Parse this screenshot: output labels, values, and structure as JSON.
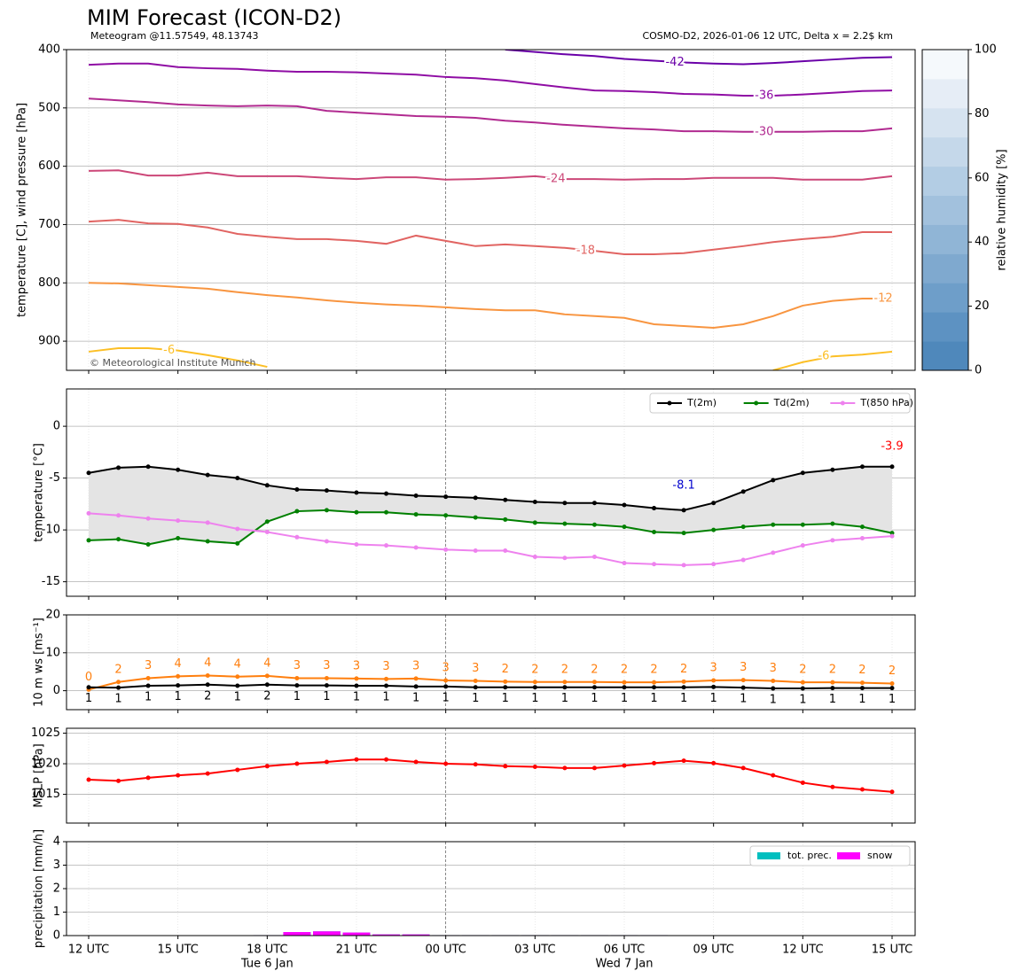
{
  "chart_data": [
    {
      "type": "contour",
      "title": "MIM Forecast (ICON-D2)",
      "subtitle": "Meteogram @11.57549, 48.13743",
      "source_note": "COSMO-D2, 2026-01-06 12 UTC, Delta x = 2.2$ km",
      "credit": "© Meteorological Institute Munich",
      "y_label": "temperature [C], wind pressure [hPa]",
      "ylim": [
        950,
        400
      ],
      "yticks": [
        400,
        500,
        600,
        700,
        800,
        900
      ],
      "grid": true,
      "series": [
        {
          "name": "-42",
          "color": "#6a00a8",
          "values": [
            null,
            null,
            null,
            null,
            null,
            null,
            null,
            null,
            null,
            null,
            null,
            null,
            null,
            null,
            400,
            404,
            408,
            411,
            416,
            419,
            422,
            424,
            425,
            423,
            420,
            417,
            414,
            413
          ]
        },
        {
          "name": "-36",
          "color": "#8f0da4",
          "values": [
            426,
            424,
            424,
            430,
            432,
            433,
            436,
            438,
            438,
            439,
            441,
            443,
            447,
            449,
            453,
            459,
            465,
            470,
            471,
            473,
            476,
            477,
            479,
            479,
            477,
            474,
            471,
            470
          ]
        },
        {
          "name": "-30",
          "color": "#b12a90",
          "values": [
            484,
            487,
            490,
            494,
            496,
            497,
            496,
            497,
            505,
            508,
            511,
            514,
            515,
            517,
            522,
            525,
            529,
            532,
            535,
            537,
            540,
            540,
            541,
            541,
            541,
            540,
            540,
            535
          ]
        },
        {
          "name": "-24",
          "color": "#cc4778",
          "values": [
            608,
            607,
            616,
            616,
            611,
            617,
            617,
            617,
            620,
            622,
            619,
            619,
            623,
            622,
            620,
            617,
            622,
            622,
            623,
            622,
            622,
            620,
            620,
            620,
            623,
            623,
            623,
            617
          ]
        },
        {
          "name": "-18",
          "color": "#e16462",
          "values": [
            695,
            692,
            698,
            699,
            705,
            716,
            721,
            725,
            725,
            728,
            733,
            719,
            728,
            737,
            734,
            737,
            740,
            745,
            751,
            751,
            749,
            743,
            737,
            730,
            725,
            721,
            713,
            713
          ]
        },
        {
          "name": "-12",
          "color": "#f89540",
          "values": [
            800,
            801,
            804,
            807,
            810,
            816,
            821,
            825,
            830,
            834,
            837,
            839,
            842,
            845,
            847,
            847,
            854,
            857,
            860,
            871,
            874,
            877,
            871,
            857,
            839,
            831,
            827,
            827
          ]
        },
        {
          "name": "-6",
          "color": "#fcbf25",
          "values": [
            918,
            912,
            912,
            916,
            924,
            933,
            944,
            null,
            null,
            null,
            null,
            null,
            null,
            null,
            null,
            null,
            null,
            null,
            null,
            null,
            null,
            null,
            null,
            950,
            936,
            926,
            923,
            918
          ]
        }
      ],
      "colorbar": {
        "label": "relative humidity [%]",
        "lim": [
          0,
          100
        ],
        "ticks": [
          0,
          20,
          40,
          60,
          80,
          100
        ],
        "colors": [
          "#4f88bb",
          "#5d92c2",
          "#6e9ec9",
          "#7fa9cf",
          "#90b5d6",
          "#a2c1dd",
          "#b3cde4",
          "#c5d8ea",
          "#d6e3f0",
          "#e6edf6",
          "#f5f9fc"
        ]
      }
    },
    {
      "type": "line",
      "y_label": "temperature [°C]",
      "ylim": [
        -16.4,
        3.6
      ],
      "yticks": [
        0,
        -5,
        -10,
        -15
      ],
      "grid": true,
      "legend": "upper right",
      "fill_between_color": "#e4e4e4",
      "series": [
        {
          "name": "T(2m)",
          "color": "#000000",
          "values": [
            -4.5,
            -4.0,
            -3.9,
            -4.2,
            -4.7,
            -5.0,
            -5.7,
            -6.1,
            -6.2,
            -6.4,
            -6.5,
            -6.7,
            -6.8,
            -6.9,
            -7.1,
            -7.3,
            -7.4,
            -7.4,
            -7.6,
            -7.9,
            -8.1,
            -7.4,
            -6.3,
            -5.2,
            -4.5,
            -4.2,
            -3.9,
            -3.9
          ]
        },
        {
          "name": "Td(2m)",
          "color": "#008000",
          "values": [
            -11.0,
            -10.9,
            -11.4,
            -10.8,
            -11.1,
            -11.3,
            -9.2,
            -8.2,
            -8.1,
            -8.3,
            -8.3,
            -8.5,
            -8.6,
            -8.8,
            -9.0,
            -9.3,
            -9.4,
            -9.5,
            -9.7,
            -10.2,
            -10.3,
            -10.0,
            -9.7,
            -9.5,
            -9.5,
            -9.4,
            -9.7,
            -10.3
          ]
        },
        {
          "name": "T(850 hPa)",
          "color": "#ee82ee",
          "values": [
            -8.4,
            -8.6,
            -8.9,
            -9.1,
            -9.3,
            -9.9,
            -10.2,
            -10.7,
            -11.1,
            -11.4,
            -11.5,
            -11.7,
            -11.9,
            -12.0,
            -12.0,
            -12.6,
            -12.7,
            -12.6,
            -13.2,
            -13.3,
            -13.4,
            -13.3,
            -12.9,
            -12.2,
            -11.5,
            -11.0,
            -10.8,
            -10.6
          ]
        }
      ],
      "annotations": [
        {
          "text": "-8.1",
          "color": "#0000cd"
        },
        {
          "text": "-3.9",
          "color": "#ff0000"
        }
      ]
    },
    {
      "type": "line",
      "y_label": "10 m ws [ms⁻¹]",
      "ylim": [
        -5,
        20
      ],
      "yticks": [
        0,
        10,
        20
      ],
      "grid": true,
      "series": [
        {
          "color": "#ff7f0e",
          "values": [
            0.3,
            2.3,
            3.3,
            3.8,
            4.0,
            3.7,
            3.9,
            3.3,
            3.3,
            3.2,
            3.1,
            3.2,
            2.7,
            2.6,
            2.4,
            2.3,
            2.3,
            2.3,
            2.2,
            2.2,
            2.4,
            2.7,
            2.8,
            2.6,
            2.2,
            2.2,
            2.1,
            1.9
          ],
          "value_labels": [
            "0",
            "2",
            "3",
            "4",
            "4",
            "4",
            "4",
            "3",
            "3",
            "3",
            "3",
            "3",
            "3",
            "3",
            "2",
            "2",
            "2",
            "2",
            "2",
            "2",
            "2",
            "3",
            "3",
            "3",
            "2",
            "2",
            "2",
            "2"
          ]
        },
        {
          "color": "#000000",
          "values": [
            0.9,
            0.8,
            1.3,
            1.4,
            1.6,
            1.3,
            1.6,
            1.4,
            1.4,
            1.3,
            1.3,
            1.1,
            1.1,
            0.9,
            0.9,
            0.9,
            0.9,
            0.9,
            0.9,
            0.9,
            0.9,
            1.0,
            0.8,
            0.6,
            0.6,
            0.7,
            0.7,
            0.7
          ],
          "value_labels": [
            "1",
            "1",
            "1",
            "1",
            "2",
            "1",
            "2",
            "1",
            "1",
            "1",
            "1",
            "1",
            "1",
            "1",
            "1",
            "1",
            "1",
            "1",
            "1",
            "1",
            "1",
            "1",
            "1",
            "1",
            "1",
            "1",
            "1",
            "1"
          ]
        }
      ]
    },
    {
      "type": "line",
      "y_label": "MSLP [hPa]",
      "ylim": [
        1010.3,
        1025.8
      ],
      "yticks": [
        1015,
        1020,
        1025
      ],
      "grid": true,
      "series": [
        {
          "color": "#ff0000",
          "values": [
            1017.4,
            1017.2,
            1017.7,
            1018.1,
            1018.4,
            1019.0,
            1019.6,
            1020.0,
            1020.3,
            1020.7,
            1020.7,
            1020.3,
            1020.0,
            1019.9,
            1019.6,
            1019.5,
            1019.3,
            1019.3,
            1019.7,
            1020.1,
            1020.5,
            1020.1,
            1019.3,
            1018.1,
            1016.9,
            1016.2,
            1015.8,
            1015.4
          ]
        }
      ]
    },
    {
      "type": "bar",
      "y_label": "precipitation [mm/h]",
      "categories": [
        "12 UTC",
        null,
        null,
        "15 UTC",
        null,
        null,
        "18 UTC",
        null,
        null,
        "21 UTC",
        null,
        null,
        "00 UTC",
        null,
        null,
        "03 UTC",
        null,
        null,
        "06 UTC",
        null,
        null,
        "09 UTC",
        null,
        null,
        "12 UTC",
        null,
        null,
        "15 UTC"
      ],
      "day_labels": [
        "Tue 6 Jan",
        "Wed 7 Jan"
      ],
      "ylim": [
        0,
        4
      ],
      "yticks": [
        0,
        1,
        2,
        3,
        4
      ],
      "grid": true,
      "legend": "upper right",
      "series": [
        {
          "name": "tot. prec.",
          "color": "#00bfbf",
          "values": [
            0,
            0,
            0,
            0,
            0,
            0,
            0.02,
            0.15,
            0.18,
            0.13,
            0.05,
            0.05,
            0.02,
            0.02,
            0.02,
            0.02,
            0.02,
            0.02,
            0.02,
            0.02,
            0,
            0,
            0,
            0,
            0,
            0,
            0,
            0
          ]
        },
        {
          "name": "snow",
          "color": "#ff00ff",
          "values": [
            0,
            0,
            0,
            0,
            0,
            0,
            0.02,
            0.15,
            0.18,
            0.13,
            0.05,
            0.05,
            0.02,
            0.02,
            0.02,
            0.02,
            0.02,
            0.02,
            0.02,
            0.02,
            0,
            0,
            0,
            0,
            0,
            0,
            0,
            0
          ]
        }
      ]
    }
  ]
}
